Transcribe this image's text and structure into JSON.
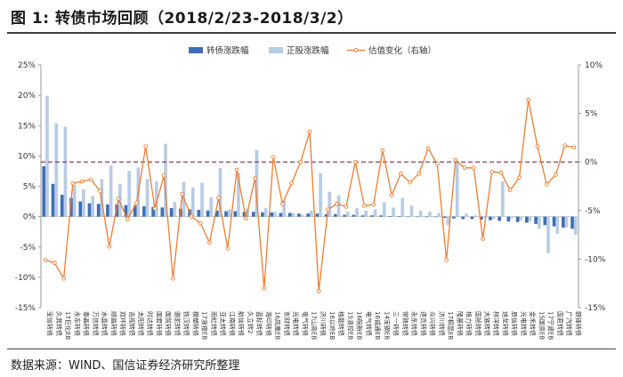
{
  "header": {
    "title": "图 1:  转债市场回顾（2018/2/23-2018/3/2）"
  },
  "footer": {
    "source": "数据来源：WIND、国信证券经济研究所整理"
  },
  "chart_data": {
    "type": "bar",
    "legend_position": "top-center",
    "grid": false,
    "reference_line": {
      "axis": "right",
      "value": 0,
      "style": "dashed",
      "color": "#7a2d4e"
    },
    "left_axis": {
      "ylim": [
        -0.15,
        0.25
      ],
      "ticks": [
        "-15%",
        "-10%",
        "-5%",
        "0%",
        "5%",
        "10%",
        "15%",
        "20%",
        "25%"
      ]
    },
    "right_axis": {
      "ylim": [
        -0.15,
        0.1
      ],
      "ticks": [
        "-15%",
        "-10%",
        "-5%",
        "0%",
        "5%",
        "10%"
      ]
    },
    "categories": [
      "宝信转债",
      "久其转债",
      "17巨化EB",
      "永东转债",
      "泰晶转债",
      "万信转债",
      "水晶转债",
      "顺昌转债",
      "双环转债",
      "吉视转债",
      "太阳转债",
      "时达转债",
      "国君转债",
      "国贸转债",
      "骆驼转债",
      "铁汉转债",
      "模塑转债",
      "17浙报EB",
      "雨虹转债",
      "亚太转债",
      "江南转债",
      "航信转债",
      "久立转2",
      "蓝标转债",
      "海印转债",
      "16凤凰EB",
      "东财转债",
      "光电转债",
      "电气转债",
      "17山高EB",
      "济川转债",
      "16以岭EB",
      "格能转债",
      "15清控EB",
      "16皖新EB",
      "电气转债",
      "16诚通EB",
      "14宝钢EB",
      "三一转债",
      "常熟转债",
      "永东转债",
      "道氏转债",
      "众兴转债",
      "济川转债",
      "17桐昆EB",
      "隆基转债",
      "格力转债",
      "国祯转债",
      "大族转债",
      "林洋转债",
      "迪龙转债",
      "辰信转债",
      "光电转债",
      "金禾转债",
      "15国资EB",
      "17宁波EB",
      "国君转债",
      "广汽转债",
      "赣锋转债"
    ],
    "series": [
      {
        "name": "转债涨跌幅",
        "axis": "left",
        "color": "#3d6fb5",
        "values": [
          0.083,
          0.054,
          0.036,
          0.031,
          0.025,
          0.022,
          0.021,
          0.02,
          0.02,
          0.019,
          0.018,
          0.017,
          0.016,
          0.015,
          0.014,
          0.013,
          0.012,
          0.011,
          0.01,
          0.01,
          0.009,
          0.009,
          0.008,
          0.008,
          0.007,
          0.007,
          0.006,
          0.006,
          0.005,
          0.005,
          0.005,
          0.004,
          0.004,
          0.003,
          0.003,
          0.002,
          0.002,
          0.002,
          0.001,
          0.001,
          0.0,
          0.0,
          -0.001,
          -0.001,
          -0.002,
          -0.003,
          -0.004,
          -0.004,
          -0.005,
          -0.006,
          -0.007,
          -0.008,
          -0.009,
          -0.01,
          -0.012,
          -0.014,
          -0.016,
          -0.018,
          -0.02
        ]
      },
      {
        "name": "正股涨跌幅",
        "axis": "left",
        "color": "#b8cce4",
        "values": [
          0.199,
          0.154,
          0.148,
          0.052,
          0.045,
          0.034,
          0.062,
          0.084,
          0.054,
          0.075,
          0.081,
          0.062,
          0.058,
          0.12,
          0.024,
          0.057,
          0.048,
          0.056,
          0.032,
          0.08,
          0.012,
          0.072,
          0.012,
          0.11,
          0.014,
          0.008,
          0.026,
          0.006,
          0.003,
          0.01,
          0.072,
          0.041,
          0.035,
          0.008,
          0.014,
          0.01,
          0.012,
          0.024,
          0.015,
          0.031,
          0.018,
          0.01,
          0.008,
          0.006,
          -0.014,
          0.092,
          0.005,
          0.002,
          -0.002,
          -0.004,
          0.058,
          -0.003,
          -0.006,
          -0.008,
          -0.02,
          -0.06,
          -0.028,
          -0.018,
          -0.03
        ]
      },
      {
        "name": "估值变化（右轴）",
        "axis": "right",
        "type": "line",
        "color": "#ed7d31",
        "values": [
          -0.101,
          -0.104,
          -0.12,
          -0.022,
          -0.02,
          -0.018,
          -0.03,
          -0.087,
          -0.038,
          -0.059,
          -0.042,
          0.016,
          -0.048,
          -0.014,
          -0.12,
          -0.033,
          -0.056,
          -0.063,
          -0.083,
          -0.037,
          -0.089,
          -0.008,
          -0.058,
          -0.017,
          -0.13,
          0.005,
          -0.043,
          -0.022,
          0.0,
          0.031,
          -0.133,
          -0.049,
          -0.043,
          -0.046,
          0.0,
          -0.045,
          -0.044,
          0.012,
          -0.034,
          -0.012,
          -0.021,
          -0.012,
          0.014,
          -0.002,
          -0.101,
          0.002,
          -0.006,
          -0.006,
          -0.079,
          -0.01,
          -0.011,
          -0.029,
          -0.016,
          0.064,
          0.016,
          -0.023,
          -0.013,
          0.017,
          0.015
        ]
      }
    ]
  }
}
